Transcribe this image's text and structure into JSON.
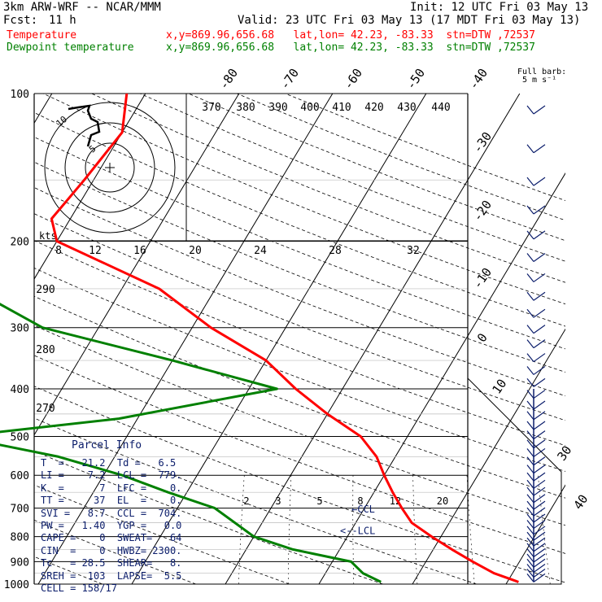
{
  "header": {
    "model": "3km ARW-WRF -- NCAR/MMM",
    "init": "Init: 12 UTC Fri 03 May 13",
    "fcst_label": "Fcst:",
    "fcst_value": "11 h",
    "valid": "Valid: 23 UTC Fri 03 May 13 (17 MDT Fri 03 May 13)",
    "temp_label": "Temperature",
    "temp_loc": "x,y=869.96,656.68   lat,lon= 42.23, -83.33  stn=DTW ,72537",
    "dew_label": "Dewpoint temperature",
    "dew_loc": "x,y=869.96,656.68   lat,lon= 42.23, -83.33  stn=DTW ,72537",
    "barb_legend_1": "Full barb:",
    "barb_legend_2": "5 m s⁻¹"
  },
  "colors": {
    "temperature": "#ff0000",
    "dewpoint": "#008000",
    "info": "#0b1d6b",
    "grid": "#000000"
  },
  "parcel_info": {
    "title": "Parcel Info",
    "rows": [
      "T  =   21.2  Td =   6.5",
      "LI =    7.2  LCL =  779.",
      "K  =      7  LFC =    0.",
      "TT =     37  EL  =    0.",
      "SVI =   8.7  CCL =  704.",
      "PW =   1.40  YGP =   0.0",
      "CAPE =    0  SWEAT=   64",
      "CIN  =    0  HWBZ= 2300.",
      "Tc   = 28.5  SHEAR=   8.",
      "SREH =  103  LAPSE=  5.5",
      "CELL = 158/17"
    ]
  },
  "chart_data": {
    "type": "line",
    "title": "",
    "ylabel": "",
    "xlabel": "",
    "y_scale": "log-pressure",
    "ylim": [
      1000,
      100
    ],
    "pressure_ticks": [
      100,
      200,
      300,
      400,
      500,
      600,
      700,
      800,
      900,
      1000
    ],
    "isotherm_ticks": [
      -80,
      -70,
      -60,
      -50,
      -40,
      -30,
      -20,
      -10,
      0,
      10,
      30,
      40
    ],
    "theta_ticks": [
      370,
      380,
      390,
      400,
      410,
      420,
      430,
      440,
      290,
      280,
      270
    ],
    "mixing_ratio_ticks": [
      2,
      3,
      5,
      8,
      12,
      20
    ],
    "hodograph_ticks_kts": [
      8,
      12,
      16,
      20,
      24,
      28,
      32
    ],
    "hodograph_ring_labels": [
      "5",
      "10"
    ],
    "hodograph_unit": "kts",
    "annotations": [
      "CCL",
      "LCL"
    ],
    "series": [
      {
        "name": "Temperature",
        "color": "#ff0000",
        "points": [
          [
            990,
            21.2
          ],
          [
            950,
            18
          ],
          [
            900,
            15
          ],
          [
            850,
            12
          ],
          [
            800,
            9
          ],
          [
            750,
            6
          ],
          [
            700,
            4
          ],
          [
            650,
            2
          ],
          [
            600,
            0
          ],
          [
            550,
            -2
          ],
          [
            500,
            -5
          ],
          [
            450,
            -10
          ],
          [
            400,
            -15
          ],
          [
            350,
            -20
          ],
          [
            300,
            -28
          ],
          [
            250,
            -36
          ],
          [
            200,
            -50
          ],
          [
            180,
            -52
          ],
          [
            150,
            -51
          ],
          [
            120,
            -50
          ],
          [
            100,
            -52
          ]
        ]
      },
      {
        "name": "Dewpoint temperature",
        "color": "#008000",
        "points": [
          [
            990,
            6.5
          ],
          [
            950,
            4
          ],
          [
            900,
            2
          ],
          [
            850,
            -5
          ],
          [
            800,
            -10
          ],
          [
            700,
            -16
          ],
          [
            650,
            -22
          ],
          [
            600,
            -28
          ],
          [
            550,
            -36
          ],
          [
            500,
            -48
          ],
          [
            460,
            -32
          ],
          [
            400,
            -17
          ],
          [
            350,
            -30
          ],
          [
            300,
            -46
          ],
          [
            250,
            -56
          ],
          [
            220,
            -60
          ],
          [
            200,
            -66
          ],
          [
            180,
            -68
          ],
          [
            150,
            -72
          ],
          [
            120,
            -78
          ],
          [
            100,
            -80
          ]
        ]
      }
    ]
  }
}
